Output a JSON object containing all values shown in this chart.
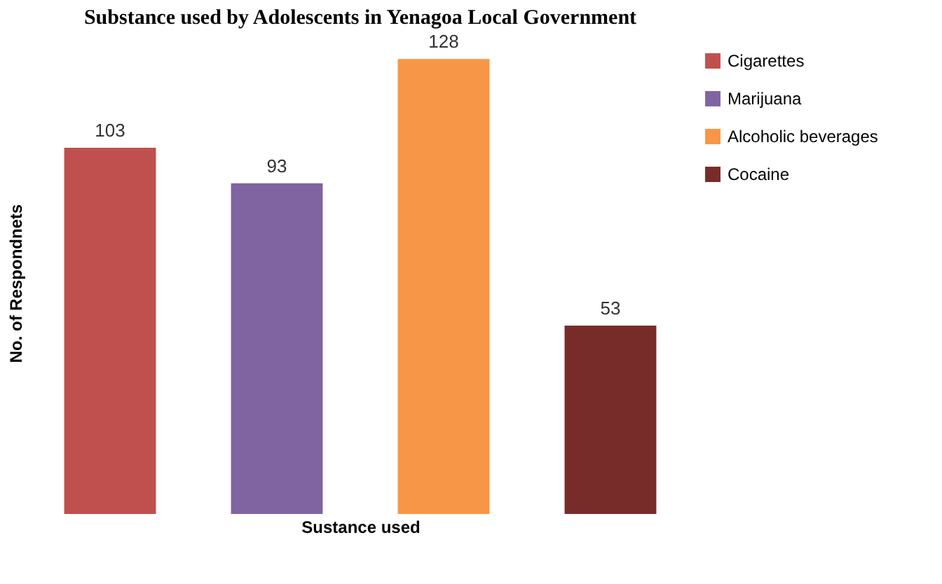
{
  "chart_data": {
    "type": "bar",
    "title": "Substance used by Adolescents in Yenagoa Local Government",
    "xlabel": "Sustance used",
    "ylabel": "No. of Respondnets",
    "categories": [
      null,
      null,
      null,
      null
    ],
    "series": [
      {
        "name": "Cigarettes",
        "color": "#c0504d",
        "values": [
          103,
          null,
          null,
          null
        ]
      },
      {
        "name": "Marijuana",
        "color": "#8064a2",
        "values": [
          null,
          93,
          null,
          null
        ]
      },
      {
        "name": "Alcoholic beverages",
        "color": "#f79646",
        "values": [
          null,
          null,
          128,
          null
        ]
      },
      {
        "name": "Cocaine",
        "color": "#772c2a",
        "values": [
          null,
          null,
          null,
          53
        ]
      }
    ],
    "stacked": true,
    "data_labels": true,
    "legend": "top right",
    "tick_labels": false,
    "grid": false
  }
}
